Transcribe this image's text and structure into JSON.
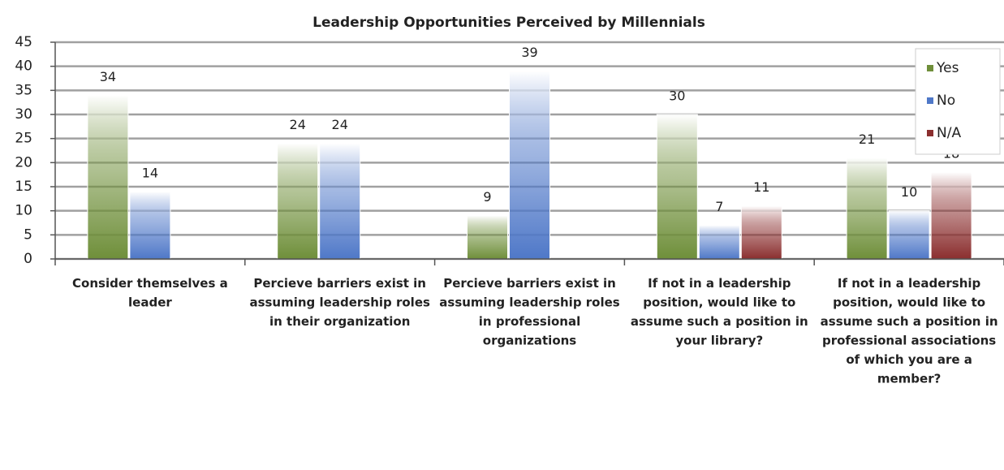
{
  "chart_data": {
    "type": "bar",
    "title": "Leadership Opportunities Perceived by Millennials",
    "categories": [
      "Consider themselves a leader",
      "Percieve barriers exist in assuming leadership roles in their organization",
      "Percieve barriers exist in assuming leadership roles in professional organizations",
      "If not in a leadership position, would like to assume such a position in your library?",
      "If not in a leadership position, would like to assume such a position in professional associations of which you are a member?"
    ],
    "series": [
      {
        "name": "Yes",
        "color": "#6f8f3a",
        "values": [
          34,
          24,
          9,
          30,
          21
        ]
      },
      {
        "name": "No",
        "color": "#4f78c8",
        "values": [
          14,
          24,
          39,
          7,
          10
        ]
      },
      {
        "name": "N/A",
        "color": "#8b2f2f",
        "values": [
          null,
          null,
          null,
          11,
          18
        ]
      }
    ],
    "ylim": [
      0,
      45
    ],
    "yticks": [
      0,
      5,
      10,
      15,
      20,
      25,
      30,
      35,
      40,
      45
    ],
    "grid": true,
    "legend": "top-right"
  }
}
